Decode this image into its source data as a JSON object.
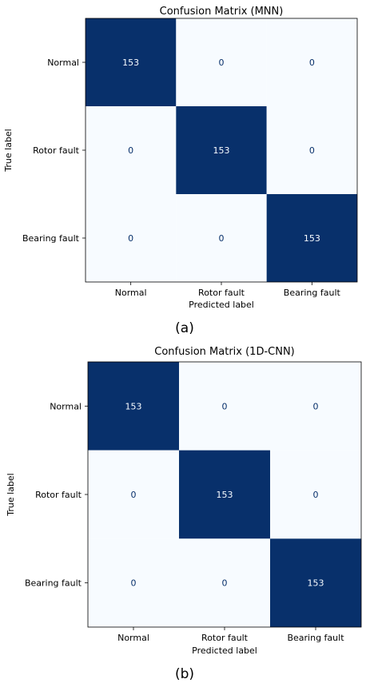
{
  "chart_data": [
    {
      "type": "heatmap",
      "title": "Confusion Matrix (MNN)",
      "xlabel": "Predicted label",
      "ylabel": "True label",
      "x_categories": [
        "Normal",
        "Rotor fault",
        "Bearing fault"
      ],
      "y_categories": [
        "Normal",
        "Rotor fault",
        "Bearing fault"
      ],
      "values": [
        [
          153,
          0,
          0
        ],
        [
          0,
          153,
          0
        ],
        [
          0,
          0,
          153
        ]
      ],
      "vmin": 0,
      "vmax": 153,
      "colormap": {
        "low": "#f7fbff",
        "high": "#08306b"
      },
      "value_text_colors": {
        "low": "#08306b",
        "high": "#f7fbff"
      },
      "colorbar": false,
      "grid": false,
      "caption": "(a)"
    },
    {
      "type": "heatmap",
      "title": "Confusion Matrix (1D-CNN)",
      "xlabel": "Predicted label",
      "ylabel": "True label",
      "x_categories": [
        "Normal",
        "Rotor fault",
        "Bearing fault"
      ],
      "y_categories": [
        "Normal",
        "Rotor fault",
        "Bearing fault"
      ],
      "values": [
        [
          153,
          0,
          0
        ],
        [
          0,
          153,
          0
        ],
        [
          0,
          0,
          153
        ]
      ],
      "vmin": 0,
      "vmax": 153,
      "colormap": {
        "low": "#f7fbff",
        "high": "#08306b"
      },
      "value_text_colors": {
        "low": "#08306b",
        "high": "#f7fbff"
      },
      "colorbar": false,
      "grid": false,
      "caption": "(b)"
    }
  ]
}
